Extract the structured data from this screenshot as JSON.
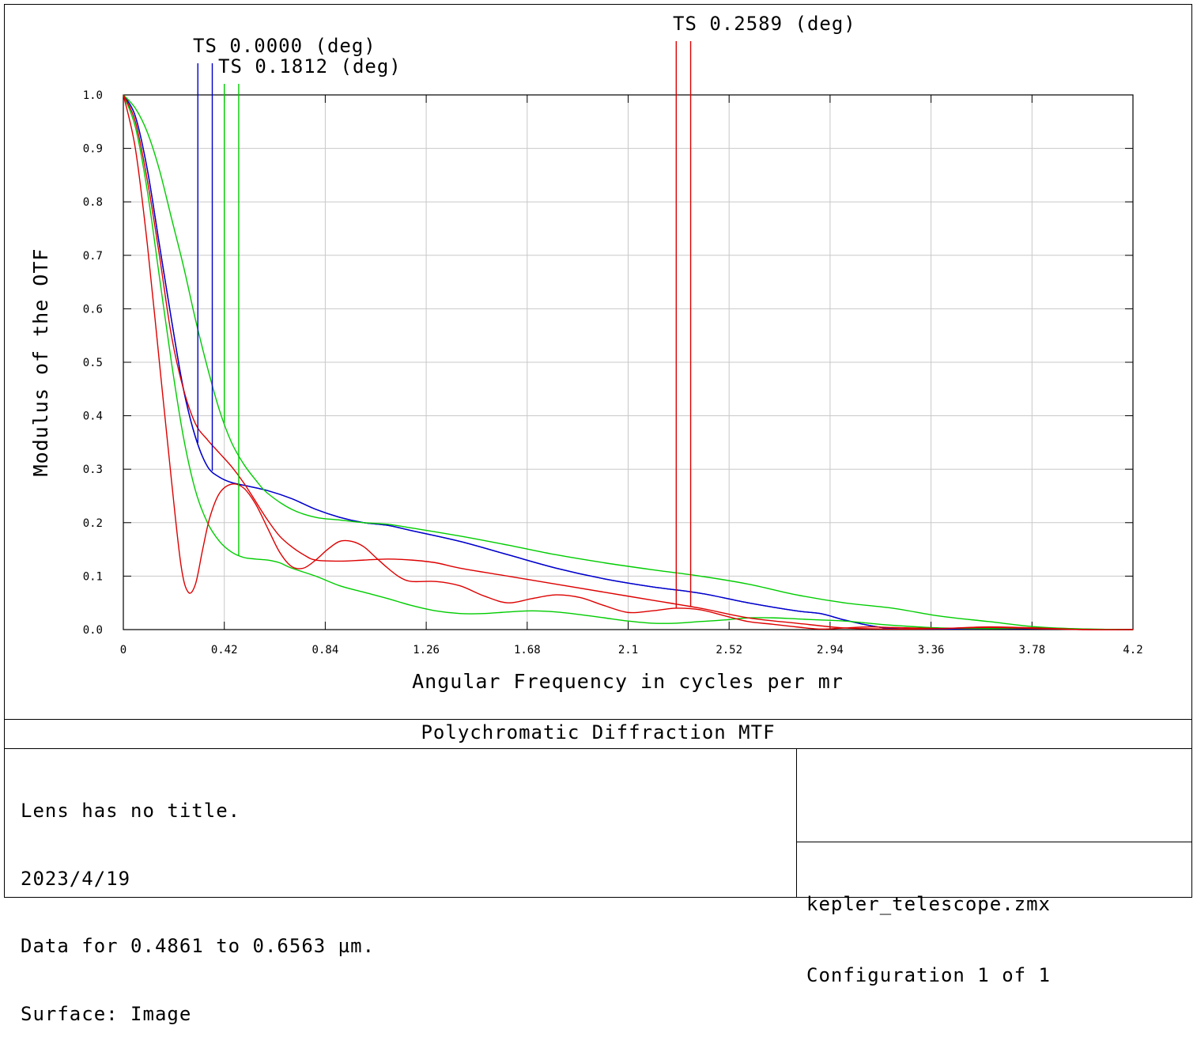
{
  "plot": {
    "title": "Polychromatic Diffraction MTF",
    "info_lines": [
      "Lens has no title.",
      "2023/4/19",
      "Data for 0.4861 to 0.6563 µm.",
      "Surface: Image"
    ],
    "file_lines": [
      "kepler_telescope.zmx",
      "Configuration 1 of 1"
    ]
  },
  "chart_data": {
    "type": "line",
    "title": "Polychromatic Diffraction MTF",
    "xlabel": "Angular Frequency in cycles per mr",
    "ylabel": "Modulus of the OTF",
    "xlim": [
      0,
      4.2
    ],
    "ylim": [
      0,
      1.0
    ],
    "grid": true,
    "x_ticks": [
      "0",
      "0.42",
      "0.84",
      "1.26",
      "1.68",
      "2.1",
      "2.52",
      "2.94",
      "3.36",
      "3.78",
      "4.2"
    ],
    "y_ticks": [
      "0.0",
      "0.1",
      "0.2",
      "0.3",
      "0.4",
      "0.5",
      "0.6",
      "0.7",
      "0.8",
      "0.9",
      "1.0"
    ],
    "field_legend": [
      {
        "label": "TS 0.0000 (deg)",
        "color": "#0000cc",
        "x_tangential": 0.31,
        "x_sagittal": 0.37
      },
      {
        "label": "TS 0.1812 (deg)",
        "color": "#00cc00",
        "x_tangential": 0.42,
        "x_sagittal": 0.48
      },
      {
        "label": "TS 0.2589 (deg)",
        "color": "#dd0000",
        "x_tangential": 2.3,
        "x_sagittal": 2.36
      }
    ],
    "series": [
      {
        "color": "#0000cc",
        "points": [
          [
            0,
            1.0
          ],
          [
            0.05,
            0.96
          ],
          [
            0.1,
            0.86
          ],
          [
            0.15,
            0.72
          ],
          [
            0.2,
            0.58
          ],
          [
            0.25,
            0.45
          ],
          [
            0.3,
            0.36
          ],
          [
            0.35,
            0.305
          ],
          [
            0.4,
            0.285
          ],
          [
            0.45,
            0.275
          ],
          [
            0.5,
            0.27
          ],
          [
            0.6,
            0.26
          ],
          [
            0.7,
            0.245
          ],
          [
            0.8,
            0.225
          ],
          [
            0.9,
            0.21
          ],
          [
            1.0,
            0.2
          ],
          [
            1.1,
            0.195
          ],
          [
            1.2,
            0.185
          ],
          [
            1.4,
            0.165
          ],
          [
            1.6,
            0.14
          ],
          [
            1.8,
            0.115
          ],
          [
            2.0,
            0.095
          ],
          [
            2.2,
            0.08
          ],
          [
            2.4,
            0.068
          ],
          [
            2.6,
            0.05
          ],
          [
            2.8,
            0.035
          ],
          [
            2.9,
            0.03
          ],
          [
            3.0,
            0.018
          ],
          [
            3.1,
            0.008
          ],
          [
            3.2,
            0.002
          ],
          [
            3.4,
            0.001
          ],
          [
            3.7,
            0.002
          ],
          [
            3.9,
            0.001
          ],
          [
            4.2,
            0.0
          ]
        ]
      },
      {
        "color": "#0000cc",
        "points": [
          [
            0,
            1.0
          ],
          [
            0.05,
            0.96
          ],
          [
            0.1,
            0.86
          ],
          [
            0.15,
            0.72
          ],
          [
            0.2,
            0.58
          ],
          [
            0.25,
            0.45
          ],
          [
            0.3,
            0.36
          ],
          [
            0.35,
            0.305
          ],
          [
            0.4,
            0.285
          ],
          [
            0.45,
            0.275
          ],
          [
            0.5,
            0.27
          ],
          [
            0.6,
            0.26
          ],
          [
            0.7,
            0.245
          ],
          [
            0.8,
            0.225
          ],
          [
            0.9,
            0.21
          ],
          [
            1.0,
            0.2
          ],
          [
            1.1,
            0.195
          ],
          [
            1.2,
            0.185
          ],
          [
            1.4,
            0.165
          ],
          [
            1.6,
            0.14
          ],
          [
            1.8,
            0.115
          ],
          [
            2.0,
            0.095
          ],
          [
            2.2,
            0.08
          ],
          [
            2.4,
            0.068
          ],
          [
            2.6,
            0.05
          ],
          [
            2.8,
            0.035
          ],
          [
            2.9,
            0.03
          ],
          [
            3.0,
            0.018
          ],
          [
            3.1,
            0.008
          ],
          [
            3.2,
            0.002
          ],
          [
            3.4,
            0.001
          ],
          [
            3.7,
            0.002
          ],
          [
            3.9,
            0.001
          ],
          [
            4.2,
            0.0
          ]
        ]
      },
      {
        "color": "#00cc00",
        "points": [
          [
            0,
            1.0
          ],
          [
            0.05,
            0.975
          ],
          [
            0.1,
            0.93
          ],
          [
            0.15,
            0.86
          ],
          [
            0.2,
            0.77
          ],
          [
            0.25,
            0.68
          ],
          [
            0.3,
            0.58
          ],
          [
            0.35,
            0.49
          ],
          [
            0.4,
            0.41
          ],
          [
            0.45,
            0.35
          ],
          [
            0.5,
            0.31
          ],
          [
            0.55,
            0.28
          ],
          [
            0.6,
            0.255
          ],
          [
            0.7,
            0.225
          ],
          [
            0.8,
            0.21
          ],
          [
            0.9,
            0.205
          ],
          [
            1.0,
            0.2
          ],
          [
            1.1,
            0.197
          ],
          [
            1.2,
            0.19
          ],
          [
            1.4,
            0.175
          ],
          [
            1.6,
            0.158
          ],
          [
            1.8,
            0.14
          ],
          [
            2.0,
            0.125
          ],
          [
            2.2,
            0.112
          ],
          [
            2.4,
            0.1
          ],
          [
            2.6,
            0.085
          ],
          [
            2.8,
            0.065
          ],
          [
            3.0,
            0.05
          ],
          [
            3.2,
            0.04
          ],
          [
            3.4,
            0.025
          ],
          [
            3.6,
            0.015
          ],
          [
            3.8,
            0.005
          ],
          [
            4.0,
            0.001
          ],
          [
            4.2,
            0.0
          ]
        ]
      },
      {
        "color": "#00cc00",
        "points": [
          [
            0,
            1.0
          ],
          [
            0.05,
            0.94
          ],
          [
            0.1,
            0.82
          ],
          [
            0.15,
            0.66
          ],
          [
            0.2,
            0.5
          ],
          [
            0.25,
            0.36
          ],
          [
            0.3,
            0.26
          ],
          [
            0.35,
            0.2
          ],
          [
            0.4,
            0.165
          ],
          [
            0.45,
            0.145
          ],
          [
            0.5,
            0.135
          ],
          [
            0.55,
            0.132
          ],
          [
            0.6,
            0.13
          ],
          [
            0.65,
            0.125
          ],
          [
            0.7,
            0.115
          ],
          [
            0.8,
            0.1
          ],
          [
            0.9,
            0.082
          ],
          [
            1.0,
            0.07
          ],
          [
            1.1,
            0.058
          ],
          [
            1.2,
            0.045
          ],
          [
            1.3,
            0.035
          ],
          [
            1.4,
            0.03
          ],
          [
            1.5,
            0.03
          ],
          [
            1.6,
            0.033
          ],
          [
            1.7,
            0.035
          ],
          [
            1.8,
            0.033
          ],
          [
            1.9,
            0.028
          ],
          [
            2.0,
            0.022
          ],
          [
            2.1,
            0.016
          ],
          [
            2.2,
            0.012
          ],
          [
            2.3,
            0.012
          ],
          [
            2.4,
            0.015
          ],
          [
            2.5,
            0.018
          ],
          [
            2.6,
            0.022
          ],
          [
            2.7,
            0.022
          ],
          [
            2.8,
            0.02
          ],
          [
            2.9,
            0.018
          ],
          [
            3.0,
            0.016
          ],
          [
            3.1,
            0.012
          ],
          [
            3.2,
            0.008
          ],
          [
            3.4,
            0.003
          ],
          [
            3.6,
            0.002
          ],
          [
            3.8,
            0.003
          ],
          [
            4.0,
            0.001
          ],
          [
            4.2,
            0.0
          ]
        ]
      },
      {
        "color": "#dd0000",
        "points": [
          [
            0,
            1.0
          ],
          [
            0.05,
            0.9
          ],
          [
            0.1,
            0.72
          ],
          [
            0.15,
            0.5
          ],
          [
            0.2,
            0.28
          ],
          [
            0.24,
            0.12
          ],
          [
            0.27,
            0.07
          ],
          [
            0.3,
            0.085
          ],
          [
            0.33,
            0.15
          ],
          [
            0.36,
            0.21
          ],
          [
            0.4,
            0.255
          ],
          [
            0.45,
            0.272
          ],
          [
            0.5,
            0.265
          ],
          [
            0.55,
            0.235
          ],
          [
            0.6,
            0.19
          ],
          [
            0.65,
            0.145
          ],
          [
            0.7,
            0.118
          ],
          [
            0.75,
            0.115
          ],
          [
            0.8,
            0.13
          ],
          [
            0.85,
            0.15
          ],
          [
            0.9,
            0.165
          ],
          [
            0.95,
            0.165
          ],
          [
            1.0,
            0.155
          ],
          [
            1.05,
            0.135
          ],
          [
            1.1,
            0.115
          ],
          [
            1.15,
            0.098
          ],
          [
            1.2,
            0.09
          ],
          [
            1.3,
            0.09
          ],
          [
            1.4,
            0.082
          ],
          [
            1.5,
            0.063
          ],
          [
            1.6,
            0.05
          ],
          [
            1.7,
            0.058
          ],
          [
            1.8,
            0.065
          ],
          [
            1.9,
            0.06
          ],
          [
            2.0,
            0.045
          ],
          [
            2.1,
            0.032
          ],
          [
            2.2,
            0.035
          ],
          [
            2.3,
            0.04
          ],
          [
            2.4,
            0.037
          ],
          [
            2.5,
            0.026
          ],
          [
            2.6,
            0.015
          ],
          [
            2.7,
            0.01
          ],
          [
            2.8,
            0.005
          ],
          [
            2.9,
            0.001
          ],
          [
            3.0,
            0.003
          ],
          [
            3.1,
            0.005
          ],
          [
            3.2,
            0.004
          ],
          [
            3.4,
            0.002
          ],
          [
            3.6,
            0.004
          ],
          [
            3.8,
            0.002
          ],
          [
            4.0,
            0.0
          ],
          [
            4.2,
            0.0
          ]
        ]
      },
      {
        "color": "#dd0000",
        "points": [
          [
            0,
            1.0
          ],
          [
            0.05,
            0.95
          ],
          [
            0.1,
            0.84
          ],
          [
            0.15,
            0.7
          ],
          [
            0.2,
            0.55
          ],
          [
            0.25,
            0.45
          ],
          [
            0.3,
            0.385
          ],
          [
            0.35,
            0.355
          ],
          [
            0.4,
            0.33
          ],
          [
            0.45,
            0.305
          ],
          [
            0.5,
            0.275
          ],
          [
            0.55,
            0.24
          ],
          [
            0.6,
            0.205
          ],
          [
            0.65,
            0.175
          ],
          [
            0.7,
            0.155
          ],
          [
            0.75,
            0.14
          ],
          [
            0.8,
            0.13
          ],
          [
            0.9,
            0.128
          ],
          [
            1.0,
            0.13
          ],
          [
            1.1,
            0.132
          ],
          [
            1.2,
            0.13
          ],
          [
            1.3,
            0.125
          ],
          [
            1.4,
            0.115
          ],
          [
            1.6,
            0.1
          ],
          [
            1.8,
            0.085
          ],
          [
            2.0,
            0.07
          ],
          [
            2.2,
            0.055
          ],
          [
            2.4,
            0.04
          ],
          [
            2.6,
            0.022
          ],
          [
            2.8,
            0.012
          ],
          [
            3.0,
            0.003
          ],
          [
            3.2,
            0.001
          ],
          [
            3.4,
            0.002
          ],
          [
            3.6,
            0.005
          ],
          [
            3.8,
            0.003
          ],
          [
            4.0,
            0.0
          ],
          [
            4.2,
            0.0
          ]
        ]
      }
    ]
  }
}
